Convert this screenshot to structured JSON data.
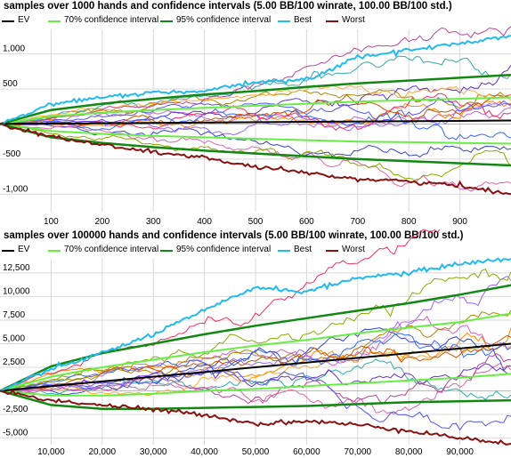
{
  "chart_data": [
    {
      "type": "line",
      "title": "samples over 1000 hands and confidence intervals (5.00 BB/100 winrate, 100.00 BB/100 std.)",
      "legend": [
        "EV",
        "70% confidence interval",
        "95% confidence interval",
        "Best",
        "Worst"
      ],
      "legend_placement": "top",
      "grid": true,
      "xlim": [
        0,
        1000
      ],
      "ylim": [
        -1250,
        1350
      ],
      "xticks": [
        100,
        200,
        300,
        400,
        500,
        600,
        700,
        800,
        900
      ],
      "xtick_labels": [
        "100",
        "200",
        "300",
        "400",
        "500",
        "600",
        "700",
        "800",
        "900"
      ],
      "yticks": [
        1000,
        500,
        -500,
        -1000
      ],
      "ytick_labels": [
        "1,000",
        "500",
        "-500",
        "-1,000"
      ],
      "winrate_bb_per_100": 5.0,
      "std_bb_per_100": 100.0,
      "series": [
        {
          "name": "EV",
          "color": "#000000",
          "x": [
            0,
            1000
          ],
          "y": [
            0,
            50
          ]
        },
        {
          "name": "70% confidence interval",
          "color": "#66ee44",
          "x": [
            0,
            100,
            200,
            300,
            400,
            500,
            600,
            700,
            800,
            900,
            1000
          ],
          "y_upper": [
            0,
            110,
            160,
            200,
            230,
            260,
            290,
            320,
            340,
            360,
            380
          ],
          "y_lower": [
            0,
            -100,
            -140,
            -170,
            -190,
            -210,
            -230,
            -250,
            -260,
            -270,
            -280
          ]
        },
        {
          "name": "95% confidence interval",
          "color": "#118811",
          "x": [
            0,
            100,
            200,
            300,
            400,
            500,
            600,
            700,
            800,
            900,
            1000
          ],
          "y_upper": [
            0,
            200,
            290,
            360,
            420,
            470,
            530,
            580,
            620,
            660,
            700
          ],
          "y_lower": [
            0,
            -190,
            -270,
            -330,
            -380,
            -420,
            -460,
            -500,
            -530,
            -560,
            -590
          ]
        },
        {
          "name": "Best",
          "color": "#22bbee",
          "x": [
            0,
            100,
            200,
            300,
            400,
            500,
            600,
            650,
            700,
            800,
            900,
            1000
          ],
          "y": [
            0,
            280,
            380,
            450,
            460,
            600,
            630,
            790,
            960,
            1050,
            1150,
            1260
          ]
        },
        {
          "name": "Worst",
          "color": "#881111",
          "x": [
            0,
            100,
            200,
            300,
            400,
            500,
            600,
            700,
            800,
            900,
            1000
          ],
          "y": [
            0,
            -180,
            -300,
            -400,
            -480,
            -620,
            -700,
            -780,
            -820,
            -880,
            -1000
          ]
        }
      ]
    },
    {
      "type": "line",
      "title": "samples over 100000 hands and confidence intervals (5.00 BB/100 winrate, 100.00 BB/100 std.)",
      "legend": [
        "EV",
        "70% confidence interval",
        "95% confidence interval",
        "Best",
        "Worst"
      ],
      "legend_placement": "top",
      "grid": true,
      "xlim": [
        0,
        100000
      ],
      "ylim": [
        -5700,
        14000
      ],
      "xticks": [
        10000,
        20000,
        30000,
        40000,
        50000,
        60000,
        70000,
        80000,
        90000
      ],
      "xtick_labels": [
        "10,000",
        "20,000",
        "30,000",
        "40,000",
        "50,000",
        "60,000",
        "70,000",
        "80,000",
        "90,000"
      ],
      "yticks": [
        12500,
        10000,
        7500,
        5000,
        2500,
        -2500,
        -5000
      ],
      "ytick_labels": [
        "12,500",
        "10,000",
        "7,500",
        "5,000",
        "2,500",
        "-2,500",
        "-5,000"
      ],
      "winrate_bb_per_100": 5.0,
      "std_bb_per_100": 100.0,
      "series": [
        {
          "name": "EV",
          "color": "#000000",
          "x": [
            0,
            100000
          ],
          "y": [
            0,
            5000
          ]
        },
        {
          "name": "70% confidence interval",
          "color": "#66ee44",
          "x": [
            0,
            10000,
            20000,
            30000,
            40000,
            50000,
            60000,
            70000,
            80000,
            90000,
            100000
          ],
          "y_upper": [
            0,
            1500,
            2500,
            3300,
            4100,
            4800,
            5400,
            6100,
            6700,
            7300,
            8200
          ],
          "y_lower": [
            0,
            -500,
            -500,
            -300,
            0,
            200,
            500,
            800,
            1100,
            1400,
            1800
          ]
        },
        {
          "name": "95% confidence interval",
          "color": "#118811",
          "x": [
            0,
            10000,
            20000,
            30000,
            40000,
            50000,
            60000,
            70000,
            80000,
            90000,
            100000
          ],
          "y_upper": [
            0,
            2600,
            4000,
            5000,
            6000,
            6900,
            7700,
            8500,
            9300,
            10200,
            11200
          ],
          "y_lower": [
            0,
            -1500,
            -1900,
            -1900,
            -1800,
            -1700,
            -1600,
            -1400,
            -1200,
            -1100,
            -1000
          ]
        },
        {
          "name": "Best",
          "color": "#22bbee",
          "x": [
            0,
            10000,
            20000,
            30000,
            40000,
            50000,
            60000,
            70000,
            80000,
            90000,
            100000
          ],
          "y": [
            0,
            2300,
            4000,
            6000,
            8500,
            11000,
            10500,
            12000,
            12500,
            13500,
            14000
          ]
        },
        {
          "name": "Worst",
          "color": "#881111",
          "x": [
            0,
            10000,
            20000,
            30000,
            40000,
            50000,
            60000,
            70000,
            80000,
            90000,
            100000
          ],
          "y": [
            0,
            -1000,
            -1500,
            -2000,
            -2500,
            -3500,
            -3200,
            -3600,
            -4200,
            -5000,
            -5600
          ]
        }
      ]
    }
  ]
}
